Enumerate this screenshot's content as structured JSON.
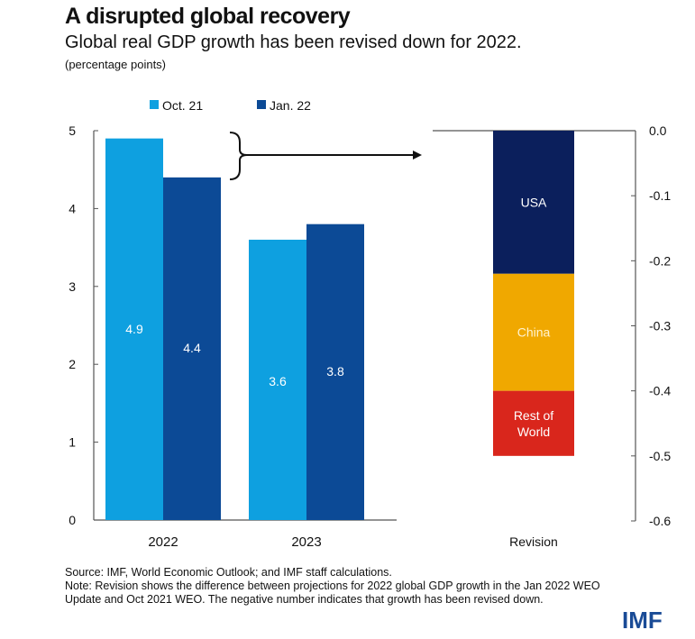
{
  "header": {
    "title": "A disrupted global recovery",
    "subtitle": "Global real GDP growth has been revised down for 2022.",
    "unit": "(percentage points)"
  },
  "chart_data": [
    {
      "type": "bar",
      "categories": [
        "2022",
        "2023"
      ],
      "series": [
        {
          "name": "Oct. 21",
          "color": "#0ea0e0",
          "values": [
            4.9,
            3.6
          ],
          "labels": [
            "4.9",
            "3.6"
          ]
        },
        {
          "name": "Jan. 22",
          "color": "#0c4a96",
          "values": [
            4.4,
            3.8
          ],
          "labels": [
            "4.4",
            "3.8"
          ]
        }
      ],
      "ylim": [
        0,
        5
      ],
      "yticks": [
        "0",
        "1",
        "2",
        "3",
        "4",
        "5"
      ],
      "legend": "top"
    },
    {
      "type": "bar",
      "stacked": true,
      "categories": [
        "Revision"
      ],
      "series": [
        {
          "name": "USA",
          "color": "#0b1f5c",
          "values": [
            -0.22
          ]
        },
        {
          "name": "China",
          "color": "#f0a800",
          "values": [
            -0.18
          ]
        },
        {
          "name": "Rest of World",
          "color": "#d9261c",
          "values": [
            -0.1
          ]
        }
      ],
      "ylim": [
        -0.6,
        0
      ],
      "yticks": [
        "0.0",
        "-0.1",
        "-0.2",
        "-0.3",
        "-0.4",
        "-0.5",
        "-0.6"
      ],
      "yaxis_side": "right"
    }
  ],
  "notes": {
    "source": "Source: IMF, World Economic Outlook; and IMF staff calculations.",
    "note": "Note: Revision shows the difference between projections for 2022 global GDP growth in the Jan 2022 WEO Update and Oct 2021 WEO. The negative number indicates that growth has been revised down."
  },
  "logo": "IMF"
}
